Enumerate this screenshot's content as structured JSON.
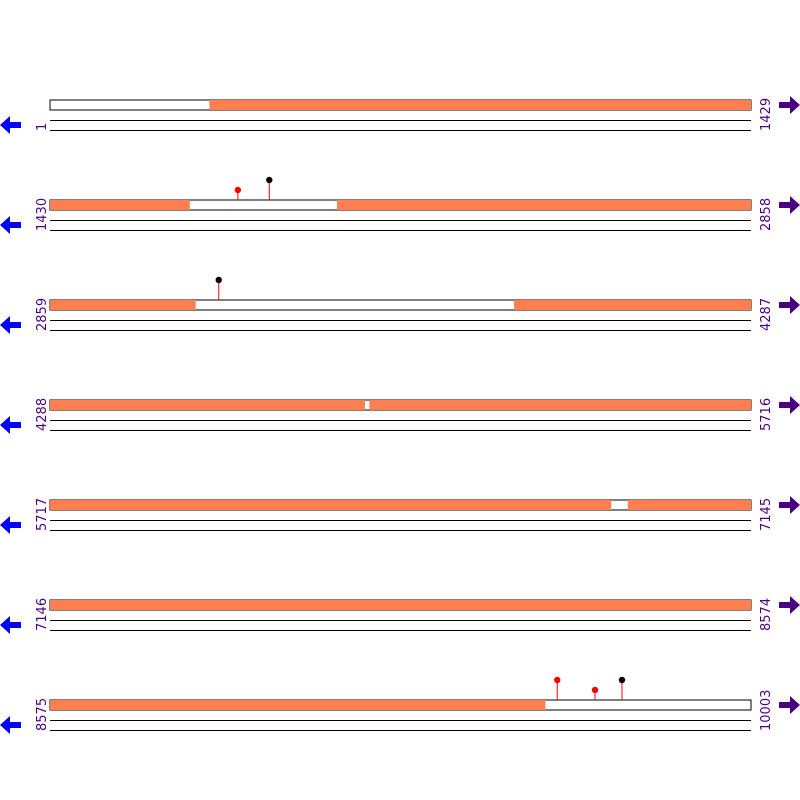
{
  "total_length": 10003,
  "colors": {
    "orf": "#ff7f50",
    "axis_line": "#000000",
    "start_label": "#4b0082",
    "end_label": "#4b0082",
    "left_arrow": "#0000ff",
    "right_arrow": "#4b0082",
    "stop_codon": "#ff0000",
    "start_codon": "#000000",
    "marker_stem": "#ff0000"
  },
  "rows": [
    {
      "start": 1,
      "end": 1429,
      "start_label": "1",
      "end_label": "1429",
      "orf_segments": [
        [
          326,
          1429
        ]
      ],
      "markers": []
    },
    {
      "start": 1430,
      "end": 2858,
      "start_label": "1430",
      "end_label": "2858",
      "orf_segments": [
        [
          1430,
          1714
        ],
        [
          2015,
          2858
        ]
      ],
      "markers": [
        {
          "pos": 1813,
          "type": "stop",
          "size": "short"
        },
        {
          "pos": 1877,
          "type": "start",
          "size": "tall"
        }
      ]
    },
    {
      "start": 2859,
      "end": 4287,
      "start_label": "2859",
      "end_label": "4287",
      "orf_segments": [
        [
          2859,
          3155
        ],
        [
          3805,
          4287
        ]
      ],
      "markers": [
        {
          "pos": 3203,
          "type": "start",
          "size": "tall"
        }
      ]
    },
    {
      "start": 4288,
      "end": 5716,
      "start_label": "4288",
      "end_label": "5716",
      "orf_segments": [
        [
          4288,
          4929
        ],
        [
          4939,
          5716
        ]
      ],
      "markers": []
    },
    {
      "start": 5717,
      "end": 7145,
      "start_label": "5717",
      "end_label": "7145",
      "orf_segments": [
        [
          5717,
          6860
        ],
        [
          6895,
          7145
        ]
      ],
      "markers": []
    },
    {
      "start": 7146,
      "end": 8574,
      "start_label": "7146",
      "end_label": "8574",
      "orf_segments": [
        [
          7146,
          8574
        ]
      ],
      "markers": []
    },
    {
      "start": 8575,
      "end": 10003,
      "start_label": "8575",
      "end_label": "10003",
      "orf_segments": [
        [
          8575,
          9584
        ]
      ],
      "markers": [
        {
          "pos": 9609,
          "type": "stop",
          "size": "tall"
        },
        {
          "pos": 9686,
          "type": "stop",
          "size": "short"
        },
        {
          "pos": 9741,
          "type": "start",
          "size": "tall"
        }
      ]
    }
  ]
}
